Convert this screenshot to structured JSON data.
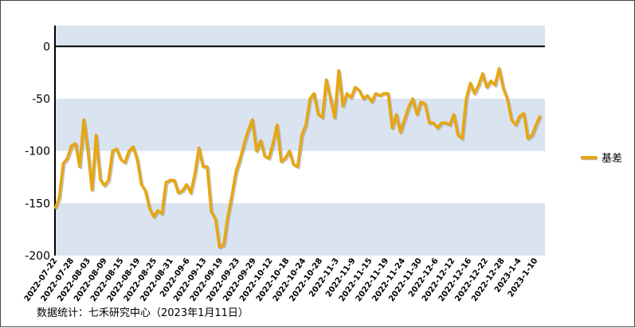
{
  "chart_data": {
    "type": "line",
    "ylim": [
      -200,
      20
    ],
    "yticks": [
      0,
      -50,
      -100,
      -150,
      -200
    ],
    "band_color": "#d9e4f0",
    "line_color": "#e8a60f",
    "grid": false,
    "legend_position": "right",
    "x_tick_labels": [
      "2022-07-22",
      "2022-07-28",
      "2022-08-03",
      "2022-08-09",
      "2022-08-15",
      "2022-08-19",
      "2022-08-25",
      "2022-08-31",
      "2022-09-6",
      "2022-09-13",
      "2022-09-19",
      "2022-09-23",
      "2022-09-29",
      "2022-10-12",
      "2022-10-18",
      "2022-10-24",
      "2022-10-28",
      "2022-11-3",
      "2022-11-9",
      "2022-11-15",
      "2022-11-19",
      "2022-11-24",
      "2022-11-30",
      "2022-12-6",
      "2022-12-12",
      "2022-12-16",
      "2022-12-22",
      "2022-12-28",
      "2023-1-4",
      "2023-1-10"
    ],
    "series": [
      {
        "name": "基差",
        "values": [
          -155,
          -145,
          -112,
          -107,
          -95,
          -93,
          -115,
          -70,
          -100,
          -137,
          -85,
          -127,
          -133,
          -128,
          -100,
          -98,
          -108,
          -111,
          -100,
          -96,
          -108,
          -132,
          -138,
          -155,
          -163,
          -157,
          -160,
          -130,
          -128,
          -128,
          -140,
          -138,
          -132,
          -140,
          -122,
          -97,
          -115,
          -115,
          -158,
          -165,
          -192,
          -190,
          -163,
          -143,
          -120,
          -108,
          -93,
          -80,
          -70,
          -100,
          -90,
          -105,
          -107,
          -93,
          -75,
          -110,
          -107,
          -100,
          -113,
          -115,
          -85,
          -75,
          -50,
          -45,
          -65,
          -68,
          -32,
          -50,
          -68,
          -23,
          -57,
          -45,
          -49,
          -39,
          -42,
          -50,
          -47,
          -53,
          -45,
          -47,
          -45,
          -45,
          -78,
          -65,
          -82,
          -70,
          -58,
          -50,
          -65,
          -53,
          -55,
          -73,
          -73,
          -78,
          -73,
          -73,
          -75,
          -65,
          -85,
          -88,
          -50,
          -35,
          -45,
          -37,
          -26,
          -39,
          -33,
          -37,
          -21,
          -40,
          -50,
          -70,
          -75,
          -67,
          -64,
          -88,
          -85,
          -75,
          -66
        ]
      }
    ]
  },
  "legend": {
    "label": "基差"
  },
  "source_note": "数据统计：七禾研究中心（2023年1月11日）"
}
